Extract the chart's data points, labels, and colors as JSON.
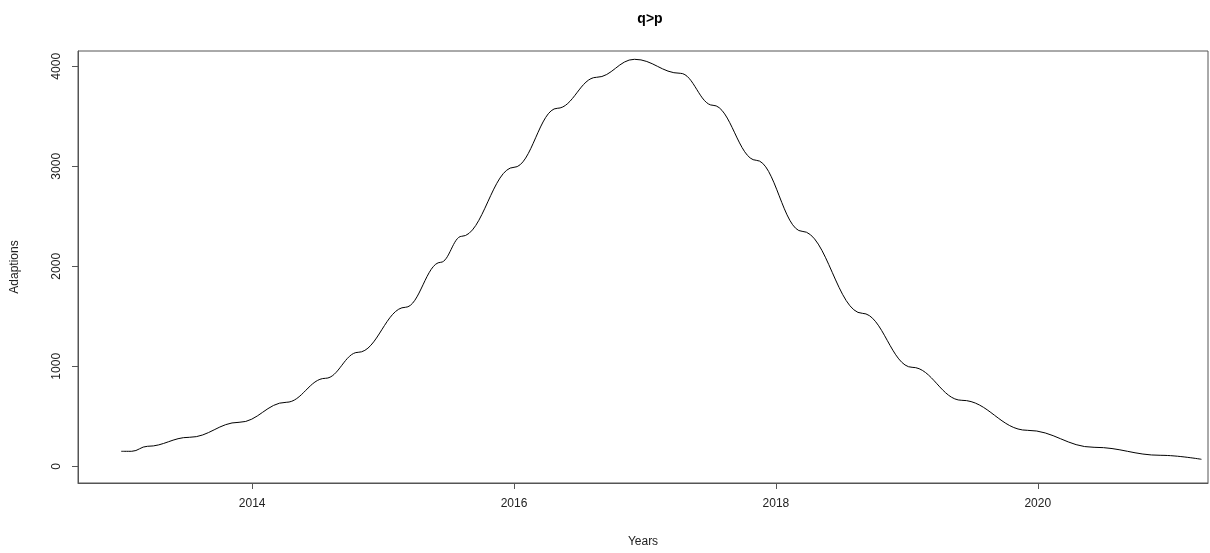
{
  "chart_data": {
    "type": "line",
    "title": "q>p",
    "xlabel": "Years",
    "ylabel": "Adaptions",
    "x": [
      2013.0,
      2013.08,
      2013.2,
      2013.52,
      2013.9,
      2014.26,
      2014.56,
      2014.81,
      2015.17,
      2015.44,
      2015.6,
      2016.0,
      2016.33,
      2016.63,
      2016.92,
      2017.27,
      2017.52,
      2017.85,
      2018.2,
      2018.66,
      2019.04,
      2019.42,
      2019.92,
      2020.43,
      2020.94,
      2021.25
    ],
    "series": [
      {
        "color": "#000000",
        "values": [
          150,
          150,
          200,
          290,
          440,
          640,
          880,
          1140,
          1590,
          2040,
          2300,
          2990,
          3580,
          3890,
          4070,
          3930,
          3610,
          3060,
          2350,
          1530,
          990,
          660,
          360,
          190,
          110,
          70
        ]
      }
    ],
    "xlim": [
      2012.67,
      2021.3
    ],
    "xticks": [
      2014,
      2016,
      2018,
      2020
    ],
    "ylim": [
      -167,
      4153
    ],
    "yticks": [
      0,
      1000,
      2000,
      3000,
      4000
    ],
    "grid": false,
    "marker": "none",
    "line_style": "solid"
  }
}
